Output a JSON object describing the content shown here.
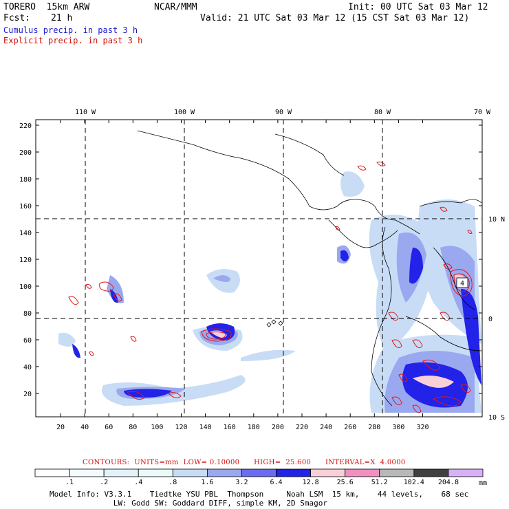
{
  "header": {
    "model_name": "TORERO  15km ARW",
    "center": "NCAR/MMM",
    "init": "Init: 00 UTC Sat 03 Mar 12",
    "fcst_label": "Fcst:",
    "fcst_value": "21 h",
    "valid": "Valid: 21 UTC Sat 03 Mar 12 (15 CST Sat 03 Mar 12)",
    "field1": "Cumulus precip. in past 3 h",
    "field2": "Explicit precip. in past 3 h"
  },
  "colors": {
    "field1": "#1a1acc",
    "field2": "#d01010",
    "contour": "#e01818"
  },
  "map": {
    "lon_labels": [
      "110 W",
      "100 W",
      "90 W",
      "80 W",
      "70 W"
    ],
    "lat_labels": [
      "10 N",
      "0",
      "10 S"
    ],
    "y_ticks": [
      "220",
      "200",
      "180",
      "160",
      "140",
      "120",
      "100",
      "80",
      "60",
      "40",
      "20"
    ],
    "x_ticks": [
      "20",
      "40",
      "60",
      "80",
      "100",
      "120",
      "140",
      "160",
      "180",
      "200",
      "220",
      "240",
      "260",
      "280",
      "300",
      "320"
    ],
    "max_label": "4"
  },
  "colorbar": {
    "labels": [
      ".1",
      ".2",
      ".4",
      ".8",
      "1.6",
      "3.2",
      "6.4",
      "12.8",
      "25.6",
      "51.2",
      "102.4",
      "204.8"
    ],
    "unit": "mm",
    "colors": [
      "#ffffff",
      "#f4fbff",
      "#e3f2fa",
      "#eafaf8",
      "#c8dcf5",
      "#9aa8f0",
      "#6c6cf0",
      "#2222e8",
      "#f8d0d8",
      "#f090c0",
      "#b8b8b8",
      "#404040",
      "#d8b0f8"
    ]
  },
  "contour_info": "CONTOURS:  UNITS=mm  LOW= 0.10000      HIGH=  25.600      INTERVAL=X  4.0000",
  "model_info": {
    "line1": "Model Info: V3.3.1    Tiedtke YSU PBL  Thompson     Noah LSM  15 km,    44 levels,    68 sec",
    "line2": "              LW: Godd SW: Goddard DIFF, simple KM, 2D Smagor"
  }
}
